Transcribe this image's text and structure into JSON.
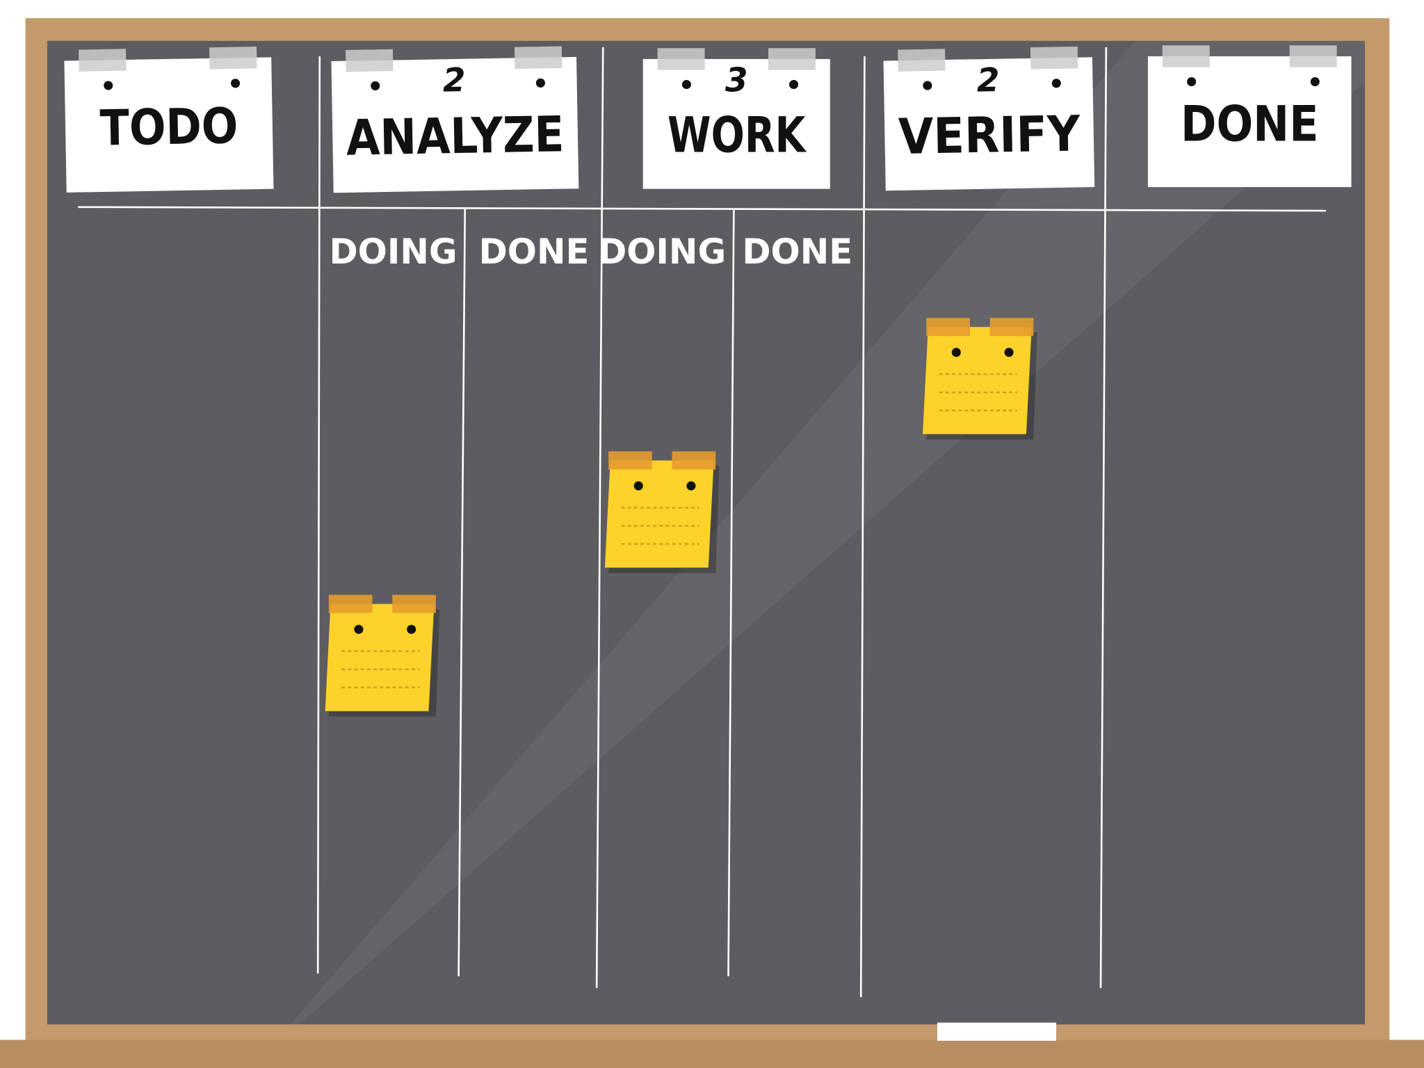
{
  "columns": [
    {
      "title": "TODO"
    },
    {
      "title": "ANALYZE",
      "wip_limit": 2,
      "subcolumns": [
        "DOING",
        "DONE"
      ]
    },
    {
      "title": "WORK",
      "wip_limit": 3,
      "subcolumns": [
        "DOING",
        "DONE"
      ]
    },
    {
      "title": "VERIFY",
      "wip_limit": 2
    },
    {
      "title": "DONE"
    }
  ]
}
